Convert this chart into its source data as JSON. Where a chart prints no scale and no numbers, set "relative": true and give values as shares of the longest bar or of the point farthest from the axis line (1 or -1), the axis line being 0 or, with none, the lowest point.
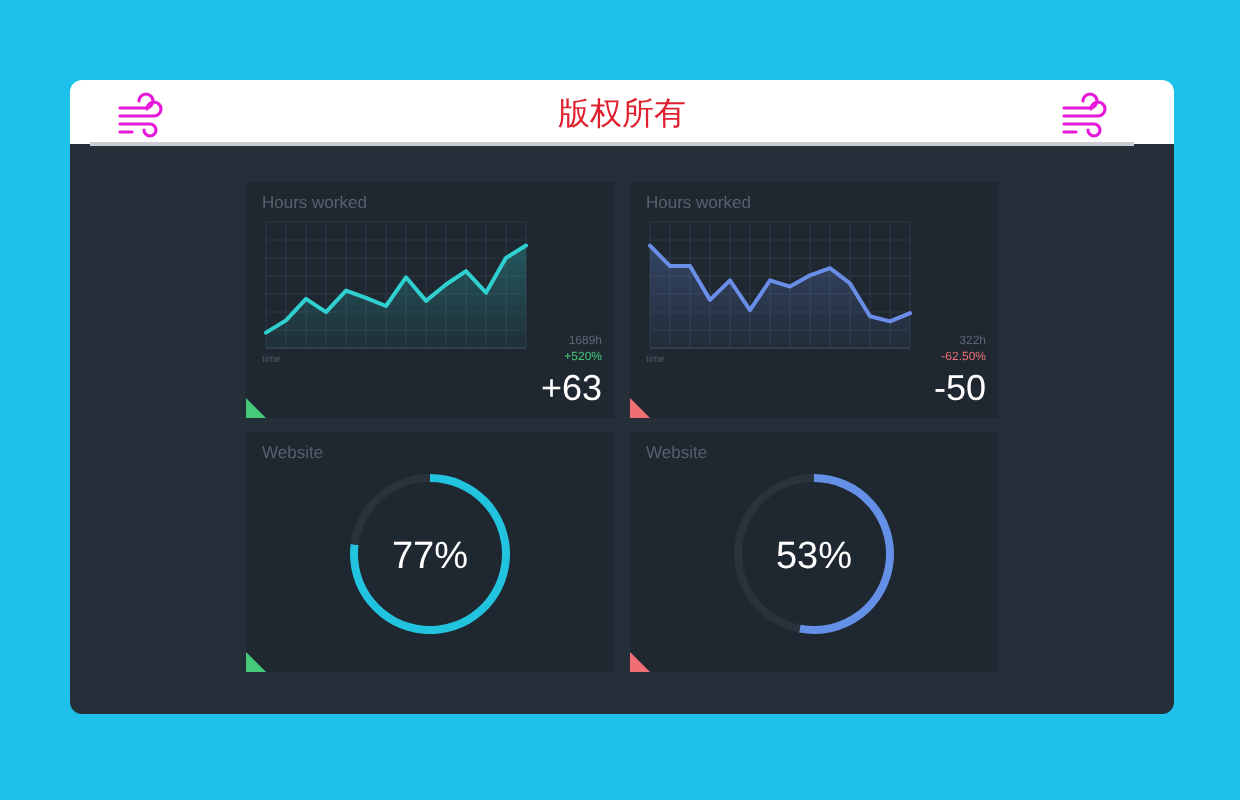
{
  "chart_data": [
    {
      "type": "other",
      "title": "版权所有"
    },
    {
      "type": "area",
      "relative": true,
      "title": "Hours worked",
      "xlabel": "time",
      "categories": [
        null,
        null,
        null,
        null,
        null,
        null,
        null,
        null,
        null,
        null,
        null,
        null,
        null,
        null
      ],
      "series": [
        {
          "color": "#2fd0cf",
          "values": [
            0.15,
            0.27,
            0.48,
            0.35,
            0.56,
            0.49,
            0.41,
            0.69,
            0.46,
            0.62,
            0.75,
            0.54,
            0.88,
            1
          ]
        }
      ],
      "grid": true,
      "annotations": [
        "1689h",
        "+520%",
        "+63"
      ]
    },
    {
      "type": "area",
      "relative": true,
      "title": "Hours worked",
      "xlabel": "time",
      "categories": [
        null,
        null,
        null,
        null,
        null,
        null,
        null,
        null,
        null,
        null,
        null,
        null,
        null,
        null
      ],
      "series": [
        {
          "color": "#6a8de8",
          "values": [
            1,
            0.8,
            0.8,
            0.47,
            0.66,
            0.37,
            0.66,
            0.6,
            0.71,
            0.78,
            0.63,
            0.31,
            0.26,
            0.34
          ]
        }
      ],
      "grid": true,
      "annotations": [
        "322h",
        "-62.50%",
        "-50"
      ]
    },
    {
      "type": "donut",
      "title": "Website",
      "categories": [
        null,
        null
      ],
      "values": [
        77,
        23
      ],
      "colors": [
        "#22c3de",
        "#2a323b"
      ],
      "value_labels": [
        "77%",
        null
      ]
    },
    {
      "type": "donut",
      "title": "Website",
      "categories": [
        null,
        null
      ],
      "values": [
        53,
        47
      ],
      "colors": [
        "#6590e8",
        "#2a323b"
      ],
      "value_labels": [
        "53%",
        null
      ]
    }
  ]
}
